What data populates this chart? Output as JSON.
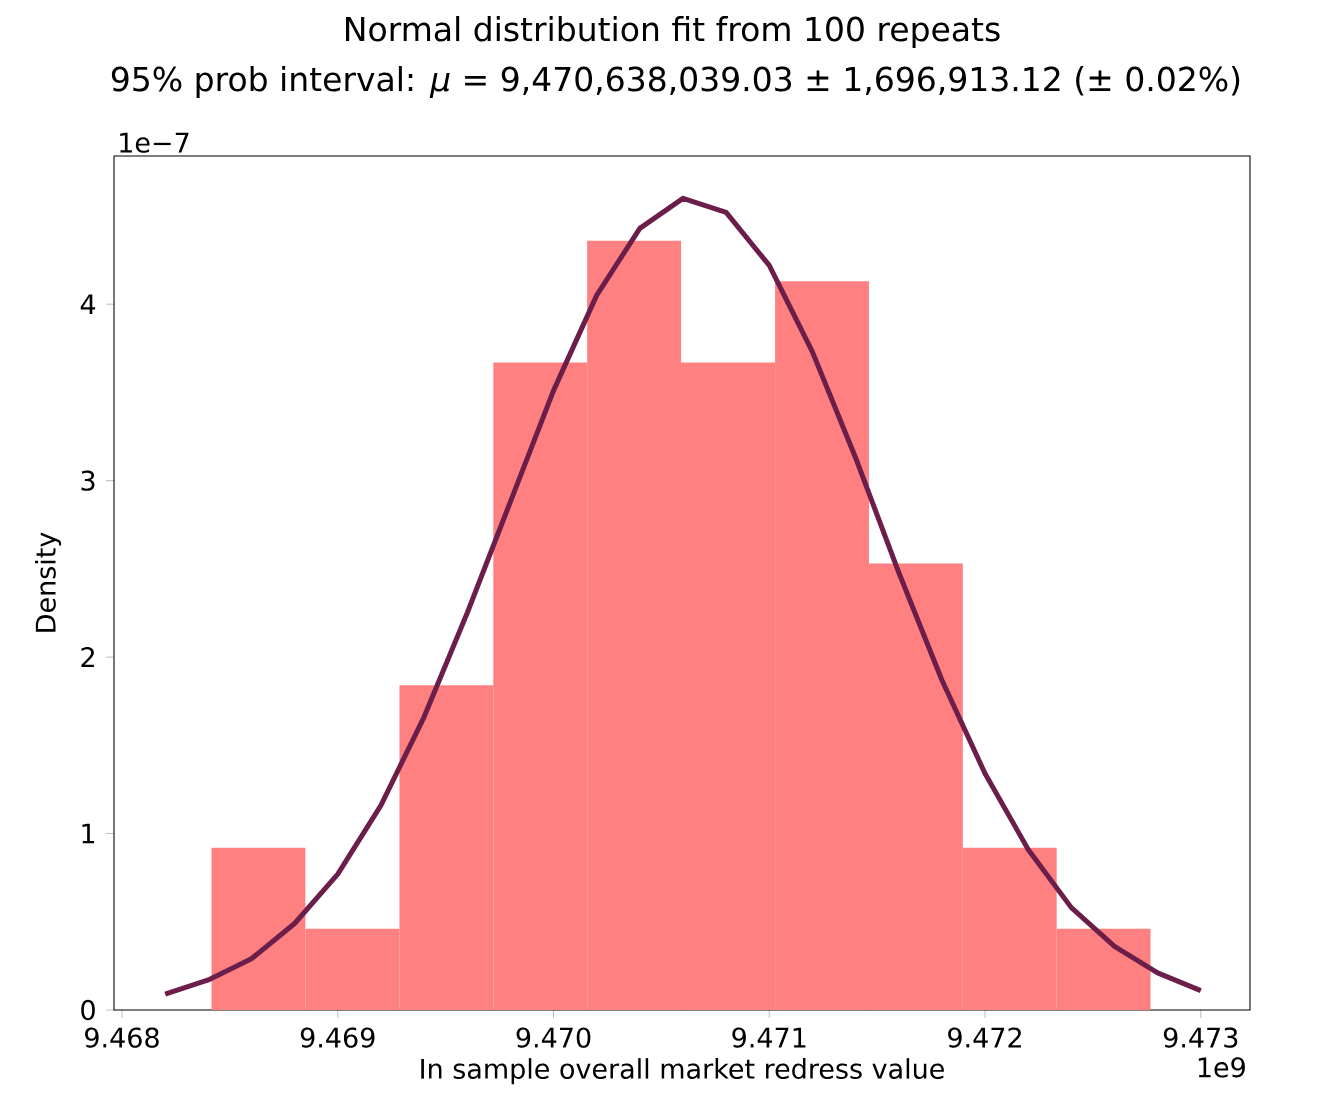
{
  "chart_data": {
    "type": "histogram",
    "title": "Normal distribution fit from 100 repeats",
    "subtitle": "95% prob interval: *μ* = 9,470,638,039.03 ± 1,696,913.12 (± 0.02%)",
    "xlabel": "In sample overall market redress value",
    "ylabel": "Density",
    "xlim": [
      9.467963,
      9.473228
    ],
    "ylim": [
      0,
      4.84
    ],
    "xticks": [
      9.468,
      9.469,
      {
        "value": 9.47,
        "label": "9.470"
      },
      9.471,
      9.472,
      9.473
    ],
    "yticks": [
      0,
      1,
      2,
      3,
      4
    ],
    "annotations": [
      "1e−7",
      "1e9"
    ],
    "series": [
      {
        "color": "#ff8080",
        "bins": [
          9.468415,
          9.46885,
          9.469286,
          9.469721,
          9.470156,
          9.470591,
          9.471027,
          9.471462,
          9.471897,
          9.472332,
          9.472767
        ],
        "values": [
          0.92,
          0.46,
          1.84,
          3.67,
          4.36,
          3.67,
          4.13,
          2.53,
          0.92,
          0.46
        ]
      },
      {
        "type": "line",
        "color": "#6b1e4a",
        "x": [
          9.4682,
          9.4684,
          9.4686,
          9.4688,
          9.469,
          9.4692,
          9.4694,
          9.4696,
          9.4698,
          9.47,
          9.4702,
          9.4704,
          9.4706,
          9.4708,
          9.471,
          9.4712,
          9.4714,
          9.4716,
          9.4718,
          9.472,
          9.4722,
          9.4724,
          9.4726,
          9.4728,
          9.473
        ],
        "values": [
          0.09,
          0.17,
          0.29,
          0.49,
          0.77,
          1.16,
          1.66,
          2.25,
          2.88,
          3.51,
          4.05,
          4.43,
          4.6,
          4.52,
          4.22,
          3.73,
          3.13,
          2.48,
          1.87,
          1.34,
          0.91,
          0.58,
          0.36,
          0.21,
          0.11
        ]
      }
    ]
  }
}
